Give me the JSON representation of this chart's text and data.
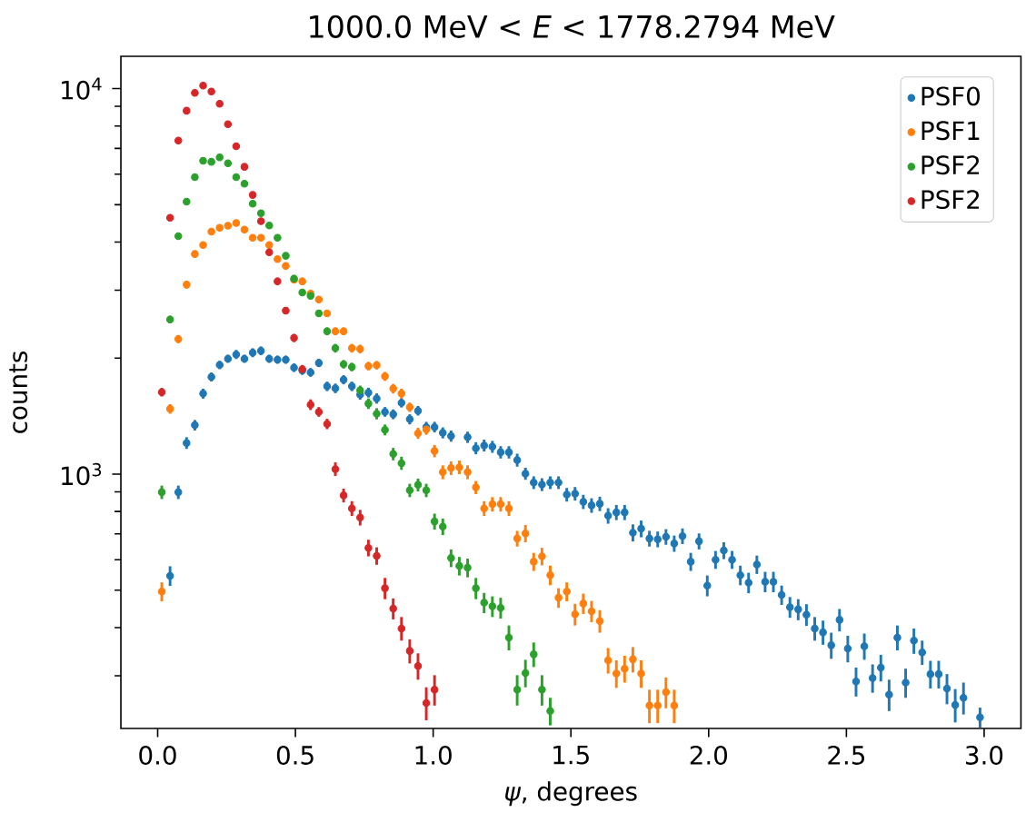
{
  "chart_data": {
    "type": "scatter",
    "title": "1000.0 MeV < *E* < 1778.2794 MeV",
    "xlabel": "*ψ*, degrees",
    "ylabel": "counts",
    "log": "y",
    "marker": "circle",
    "legend": "top right",
    "xlim": [
      -0.1335,
      3.1335
    ],
    "ylim": [
      219,
      12130
    ],
    "xticks": [
      {
        "value": 0,
        "label": "0.0"
      },
      {
        "value": 0.5,
        "label": "0.5"
      },
      {
        "value": 1,
        "label": "1.0"
      },
      {
        "value": 1.5,
        "label": "1.5"
      },
      {
        "value": 2,
        "label": "2.0"
      },
      {
        "value": 2.5,
        "label": "2.5"
      },
      {
        "value": 3,
        "label": "3.0"
      }
    ],
    "yticks": [
      {
        "value": 300,
        "label": null
      },
      {
        "value": 400,
        "label": null
      },
      {
        "value": 500,
        "label": null
      },
      {
        "value": 600,
        "label": null
      },
      {
        "value": 700,
        "label": null
      },
      {
        "value": 800,
        "label": null
      },
      {
        "value": 900,
        "label": null
      },
      {
        "value": 1000,
        "label": "10$^{3}$"
      },
      {
        "value": 2000,
        "label": null
      },
      {
        "value": 3000,
        "label": null
      },
      {
        "value": 4000,
        "label": null
      },
      {
        "value": 5000,
        "label": null
      },
      {
        "value": 6000,
        "label": null
      },
      {
        "value": 7000,
        "label": null
      },
      {
        "value": 8000,
        "label": null
      },
      {
        "value": 9000,
        "label": null
      },
      {
        "value": 10000,
        "label": "10$^{4}$"
      }
    ],
    "x": [
      0.015,
      0.045,
      0.075,
      0.105,
      0.135,
      0.165,
      0.195,
      0.225,
      0.255,
      0.285,
      0.315,
      0.345,
      0.375,
      0.405,
      0.435,
      0.465,
      0.495,
      0.525,
      0.555,
      0.585,
      0.615,
      0.645,
      0.675,
      0.705,
      0.735,
      0.765,
      0.795,
      0.825,
      0.855,
      0.885,
      0.915,
      0.945,
      0.975,
      1.005,
      1.035,
      1.065,
      1.095,
      1.125,
      1.155,
      1.185,
      1.215,
      1.245,
      1.275,
      1.305,
      1.335,
      1.365,
      1.395,
      1.425,
      1.455,
      1.485,
      1.515,
      1.545,
      1.575,
      1.605,
      1.635,
      1.665,
      1.695,
      1.725,
      1.755,
      1.785,
      1.815,
      1.845,
      1.875,
      1.905,
      1.935,
      1.965,
      1.995,
      2.025,
      2.055,
      2.085,
      2.115,
      2.145,
      2.175,
      2.205,
      2.235,
      2.265,
      2.295,
      2.325,
      2.355,
      2.385,
      2.415,
      2.445,
      2.475,
      2.505,
      2.535,
      2.565,
      2.595,
      2.625,
      2.655,
      2.685,
      2.715,
      2.745,
      2.775,
      2.805,
      2.835,
      2.865,
      2.895,
      2.925,
      2.955,
      2.985
    ],
    "series": [
      {
        "name": "PSF0",
        "color": "#1f77b4",
        "values": [
          null,
          545,
          898,
          1205,
          1340,
          1618,
          1788,
          1920,
          1993,
          2045,
          1993,
          2066,
          2090,
          1993,
          1982,
          1982,
          1889,
          1858,
          1837,
          1943,
          1690,
          1670,
          1758,
          1690,
          1608,
          1628,
          1572,
          1451,
          1430,
          1531,
          1388,
          1461,
          1325,
          1325,
          1280,
          1256,
          null,
          1247,
          1168,
          1187,
          1178,
          1140,
          1140,
          1088,
          1003,
          951,
          940,
          951,
          951,
          885,
          890,
          848,
          830,
          838,
          780,
          796,
          796,
          705,
          722,
          681,
          678,
          688,
          661,
          691,
          593,
          670,
          514,
          600,
          634,
          600,
          547,
          523,
          583,
          526,
          526,
          486,
          452,
          446,
          432,
          398,
          389,
          360,
          419,
          353,
          290,
          358,
          296,
          315,
          268,
          377,
          288,
          370,
          345,
          303,
          303,
          278,
          252,
          263,
          null,
          234
        ],
        "errors": [
          null,
          32,
          36,
          42,
          42,
          48,
          48,
          48,
          48,
          55,
          48,
          55,
          55,
          48,
          48,
          48,
          48,
          48,
          48,
          48,
          48,
          48,
          48,
          48,
          48,
          48,
          48,
          42,
          42,
          42,
          42,
          42,
          42,
          42,
          42,
          42,
          null,
          42,
          42,
          42,
          42,
          42,
          42,
          42,
          36,
          36,
          36,
          36,
          36,
          36,
          36,
          36,
          36,
          36,
          36,
          36,
          36,
          36,
          36,
          32,
          32,
          32,
          32,
          32,
          32,
          32,
          32,
          32,
          32,
          32,
          32,
          32,
          32,
          32,
          32,
          28,
          28,
          28,
          28,
          28,
          28,
          28,
          28,
          28,
          25,
          28,
          25,
          25,
          25,
          28,
          25,
          28,
          25,
          25,
          25,
          25,
          25,
          25,
          null,
          14
        ]
      },
      {
        "name": "PSF1",
        "color": "#ff7f0e",
        "values": [
          496,
          1477,
          2241,
          3102,
          3725,
          3929,
          4256,
          4358,
          4409,
          4480,
          4307,
          4103,
          4103,
          3929,
          3612,
          3469,
          3195,
          3164,
          2940,
          2838,
          2613,
          2347,
          2347,
          2122,
          2112,
          1907,
          1917,
          1794,
          1667,
          1618,
          1492,
          1277,
          1307,
          1148,
          1012,
          1037,
          1042,
          1012,
          924,
          815,
          836,
          836,
          815,
          681,
          702,
          593,
          612,
          547,
          478,
          496,
          433,
          462,
          441,
          416,
          329,
          304,
          313,
          331,
          304,
          251,
          251,
          272,
          251,
          null,
          null,
          null,
          null,
          null,
          null,
          null,
          null,
          null,
          null,
          null,
          null,
          null,
          null,
          null,
          null,
          null,
          null,
          null,
          null,
          null,
          null,
          null,
          null,
          null,
          null,
          null,
          null,
          null,
          null,
          null,
          null,
          null,
          null,
          null,
          null,
          null
        ],
        "errors": [
          28,
          42,
          55,
          70,
          70,
          70,
          70,
          70,
          70,
          70,
          70,
          70,
          70,
          70,
          70,
          70,
          70,
          70,
          55,
          55,
          55,
          55,
          55,
          55,
          55,
          48,
          48,
          48,
          48,
          48,
          42,
          42,
          42,
          42,
          42,
          42,
          42,
          42,
          36,
          36,
          36,
          36,
          36,
          32,
          36,
          32,
          32,
          32,
          28,
          28,
          28,
          28,
          28,
          28,
          25,
          25,
          25,
          25,
          25,
          25,
          25,
          25,
          25,
          null,
          null,
          null,
          null,
          null,
          null,
          null,
          null,
          null,
          null,
          null,
          null,
          null,
          null,
          null,
          null,
          null,
          null,
          null,
          null,
          null,
          null,
          null,
          null,
          null,
          null,
          null,
          null,
          null,
          null,
          null,
          null,
          null,
          null,
          null,
          null,
          null
        ]
      },
      {
        "name": "PSF2",
        "color": "#2ca02c",
        "values": [
          898,
          2520,
          4144,
          5089,
          5893,
          6500,
          6460,
          6630,
          6400,
          5893,
          5670,
          5030,
          4750,
          4415,
          4103,
          3685,
          3216,
          2960,
          2900,
          2613,
          2347,
          2122,
          1928,
          1897,
          1649,
          1524,
          1435,
          1303,
          1128,
          1068,
          908,
          938,
          908,
          754,
          731,
          606,
          578,
          572,
          506,
          464,
          454,
          450,
          377,
          276,
          305,
          341,
          276,
          243,
          null,
          null,
          null,
          null,
          null,
          null,
          null,
          null,
          null,
          null,
          null,
          null,
          null,
          null,
          null,
          null,
          null,
          null,
          null,
          null,
          null,
          null,
          null,
          null,
          null,
          null,
          null,
          null,
          null,
          null,
          null,
          null,
          null,
          null,
          null,
          null,
          null,
          null,
          null,
          null,
          null,
          null,
          null,
          null,
          null,
          null,
          null,
          null,
          null,
          null,
          null,
          null
        ],
        "errors": [
          36,
          55,
          70,
          90,
          90,
          90,
          90,
          90,
          90,
          90,
          90,
          90,
          70,
          70,
          70,
          70,
          70,
          55,
          55,
          55,
          55,
          55,
          48,
          48,
          48,
          48,
          48,
          42,
          42,
          42,
          36,
          36,
          36,
          36,
          36,
          32,
          32,
          32,
          32,
          28,
          28,
          28,
          28,
          25,
          25,
          25,
          25,
          20,
          null,
          null,
          null,
          null,
          null,
          null,
          null,
          null,
          null,
          null,
          null,
          null,
          null,
          null,
          null,
          null,
          null,
          null,
          null,
          null,
          null,
          null,
          null,
          null,
          null,
          null,
          null,
          null,
          null,
          null,
          null,
          null,
          null,
          null,
          null,
          null,
          null,
          null,
          null,
          null,
          null,
          null,
          null,
          null,
          null,
          null,
          null,
          null,
          null,
          null,
          null,
          null
        ]
      },
      {
        "name": "PSF2",
        "color": "#d62728",
        "values": [
          1632,
          4626,
          7334,
          8765,
          9750,
          10180,
          9830,
          9140,
          8090,
          7090,
          6270,
          5300,
          4530,
          3765,
          3164,
          2655,
          2256,
          1872,
          1515,
          1451,
          1350,
          1031,
          881,
          815,
          772,
          644,
          614,
          506,
          448,
          398,
          348,
          318,
          255,
          276,
          null,
          null,
          null,
          null,
          null,
          null,
          null,
          null,
          null,
          null,
          null,
          null,
          null,
          null,
          null,
          null,
          null,
          null,
          null,
          null,
          null,
          null,
          null,
          null,
          null,
          null,
          null,
          null,
          null,
          null,
          null,
          null,
          null,
          null,
          null,
          null,
          null,
          null,
          null,
          null,
          null,
          null,
          null,
          null,
          null,
          null,
          null,
          null,
          null,
          null,
          null,
          null,
          null,
          null,
          null,
          null,
          null,
          null,
          null,
          null,
          null,
          null,
          null,
          null,
          null,
          null
        ],
        "errors": [
          42,
          70,
          90,
          90,
          90,
          90,
          90,
          90,
          90,
          90,
          90,
          90,
          70,
          70,
          70,
          55,
          55,
          48,
          48,
          42,
          42,
          42,
          36,
          36,
          36,
          32,
          32,
          32,
          28,
          28,
          25,
          25,
          25,
          25,
          null,
          null,
          null,
          null,
          null,
          null,
          null,
          null,
          null,
          null,
          null,
          null,
          null,
          null,
          null,
          null,
          null,
          null,
          null,
          null,
          null,
          null,
          null,
          null,
          null,
          null,
          null,
          null,
          null,
          null,
          null,
          null,
          null,
          null,
          null,
          null,
          null,
          null,
          null,
          null,
          null,
          null,
          null,
          null,
          null,
          null,
          null,
          null,
          null,
          null,
          null,
          null,
          null,
          null,
          null,
          null,
          null,
          null,
          null,
          null,
          null,
          null,
          null,
          null,
          null,
          null
        ]
      }
    ]
  }
}
